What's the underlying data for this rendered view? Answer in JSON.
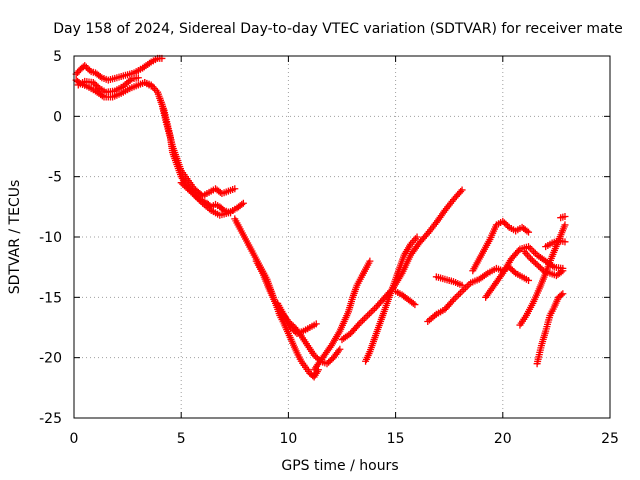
{
  "chart_data": {
    "type": "scatter",
    "title": "Day 158 of 2024, Sidereal Day-to-day VTEC variation (SDTVAR) for receiver mate",
    "xlabel": "GPS time / hours",
    "ylabel": "SDTVAR / TECUs",
    "xlim": [
      0,
      25
    ],
    "ylim": [
      -25,
      5
    ],
    "xticks": [
      "0",
      "5",
      "10",
      "15",
      "20",
      "25"
    ],
    "yticks": [
      "5",
      "0",
      "-5",
      "-10",
      "-15",
      "-20",
      "-25"
    ],
    "grid": true,
    "marker": "+",
    "color": "#ff0000",
    "series": [
      {
        "x": [
          0.1,
          0.3,
          0.5,
          0.8,
          1.0,
          1.3,
          1.6,
          2.0,
          2.4,
          2.8,
          3.2,
          3.6,
          3.9,
          4.1
        ],
        "y": [
          3.5,
          3.9,
          4.2,
          3.7,
          3.6,
          3.2,
          3.0,
          3.2,
          3.4,
          3.6,
          4.0,
          4.5,
          4.8,
          4.8
        ]
      },
      {
        "x": [
          0.1,
          0.3,
          0.6,
          1.0,
          1.4,
          1.8,
          2.2,
          2.6,
          3.0,
          3.3,
          3.6
        ],
        "y": [
          3.0,
          2.7,
          2.5,
          2.1,
          1.6,
          1.6,
          1.9,
          2.3,
          2.6,
          2.8,
          2.5
        ]
      },
      {
        "x": [
          0.2,
          0.5,
          0.9,
          1.2,
          1.5,
          1.9,
          2.3,
          2.7,
          3.0
        ],
        "y": [
          2.6,
          2.9,
          2.8,
          2.3,
          2.0,
          2.1,
          2.5,
          3.1,
          3.2
        ]
      },
      {
        "x": [
          3.3,
          3.6,
          3.9,
          4.1,
          4.3,
          4.5,
          4.6,
          4.8,
          5.0,
          5.2,
          5.4,
          5.6,
          5.8,
          6.0,
          6.2,
          6.4,
          6.6,
          6.8,
          7.0,
          7.3
        ],
        "y": [
          2.8,
          2.6,
          2.0,
          1.0,
          -0.5,
          -1.8,
          -3.0,
          -4.0,
          -5.0,
          -5.6,
          -6.0,
          -6.5,
          -6.8,
          -7.0,
          -7.2,
          -7.5,
          -7.3,
          -7.5,
          -7.8,
          -8.0
        ]
      },
      {
        "x": [
          4.0,
          4.2,
          4.4,
          4.6,
          4.8,
          5.0,
          5.2,
          5.4,
          5.6,
          5.8,
          6.0,
          6.3,
          6.6,
          6.9,
          7.2,
          7.5
        ],
        "y": [
          1.5,
          0.5,
          -1.0,
          -2.5,
          -3.5,
          -4.5,
          -5.0,
          -5.5,
          -6.0,
          -6.3,
          -6.6,
          -6.3,
          -6.0,
          -6.4,
          -6.2,
          -6.0
        ]
      },
      {
        "x": [
          5.0,
          5.3,
          5.6,
          6.0,
          6.4,
          6.8,
          7.2,
          7.6,
          7.9
        ],
        "y": [
          -5.5,
          -6.0,
          -6.5,
          -7.2,
          -7.8,
          -8.2,
          -8.0,
          -7.6,
          -7.2
        ]
      },
      {
        "x": [
          7.5,
          7.8,
          8.1,
          8.4,
          8.7,
          9.0,
          9.2,
          9.4,
          9.6,
          9.8,
          10.0,
          10.2,
          10.4,
          10.6,
          10.8,
          11.0,
          11.2,
          11.4
        ],
        "y": [
          -8.5,
          -9.5,
          -10.5,
          -11.5,
          -12.5,
          -13.5,
          -14.5,
          -15.5,
          -16.5,
          -17.2,
          -18.0,
          -18.8,
          -19.6,
          -20.3,
          -20.8,
          -21.3,
          -21.6,
          -21.0
        ]
      },
      {
        "x": [
          8.5,
          8.8,
          9.1,
          9.4,
          9.7,
          10.0,
          10.3,
          10.6,
          10.9,
          11.2,
          11.5,
          11.8,
          12.1,
          12.4
        ],
        "y": [
          -12.0,
          -13.0,
          -14.3,
          -15.5,
          -16.3,
          -17.0,
          -17.5,
          -18.2,
          -19.0,
          -19.8,
          -20.3,
          -20.5,
          -20.0,
          -19.3
        ]
      },
      {
        "x": [
          9.5,
          9.8,
          10.1,
          10.4,
          10.7,
          11.0,
          11.3
        ],
        "y": [
          -15.5,
          -16.5,
          -17.5,
          -18.0,
          -17.8,
          -17.5,
          -17.2
        ]
      },
      {
        "x": [
          11.2,
          11.6,
          12.0,
          12.4,
          12.8,
          13.0,
          13.2,
          13.5,
          13.8
        ],
        "y": [
          -21.0,
          -20.0,
          -19.0,
          -17.8,
          -16.2,
          -15.0,
          -14.0,
          -13.0,
          -12.0
        ]
      },
      {
        "x": [
          12.5,
          12.9,
          13.3,
          13.7,
          14.1,
          14.5,
          14.9,
          15.3,
          15.7,
          16.1,
          16.5,
          16.9,
          17.3,
          17.7,
          18.1
        ],
        "y": [
          -18.5,
          -18.0,
          -17.2,
          -16.5,
          -15.8,
          -15.0,
          -14.2,
          -13.0,
          -11.5,
          -10.5,
          -9.7,
          -8.8,
          -7.8,
          -6.9,
          -6.1
        ]
      },
      {
        "x": [
          13.6,
          13.8,
          14.0,
          14.2,
          14.4,
          14.6,
          14.8,
          15.0,
          15.2,
          15.4,
          15.7,
          16.0
        ],
        "y": [
          -20.3,
          -19.5,
          -18.5,
          -17.5,
          -16.5,
          -15.5,
          -14.5,
          -13.5,
          -12.5,
          -11.5,
          -10.6,
          -10.0
        ]
      },
      {
        "x": [
          15.0,
          15.3,
          15.6,
          15.9
        ],
        "y": [
          -14.5,
          -14.8,
          -15.2,
          -15.6
        ]
      },
      {
        "x": [
          16.5,
          16.9,
          17.3,
          17.7,
          18.1,
          18.5,
          18.9,
          19.3,
          19.7,
          20.0,
          20.3,
          20.6,
          20.9,
          21.2
        ],
        "y": [
          -17.0,
          -16.4,
          -16.0,
          -15.2,
          -14.5,
          -13.8,
          -13.5,
          -13.0,
          -12.6,
          -12.8,
          -12.5,
          -13.0,
          -13.3,
          -13.6
        ]
      },
      {
        "x": [
          18.6,
          19.0,
          19.4,
          19.7,
          20.0,
          20.3,
          20.6,
          20.9,
          21.2
        ],
        "y": [
          -12.8,
          -11.5,
          -10.2,
          -9.0,
          -8.7,
          -9.2,
          -9.5,
          -9.2,
          -9.6
        ]
      },
      {
        "x": [
          16.9,
          17.3,
          17.7,
          18.1
        ],
        "y": [
          -13.3,
          -13.5,
          -13.7,
          -14.0
        ]
      },
      {
        "x": [
          19.2,
          19.6,
          20.0,
          20.4,
          20.8,
          21.2,
          21.6,
          22.0,
          22.4,
          22.8
        ],
        "y": [
          -15.0,
          -14.0,
          -13.0,
          -11.8,
          -11.0,
          -10.8,
          -11.5,
          -12.0,
          -12.5,
          -12.6
        ]
      },
      {
        "x": [
          20.8,
          21.1,
          21.4,
          21.7,
          22.0,
          22.3,
          22.6,
          22.9
        ],
        "y": [
          -17.3,
          -16.5,
          -15.5,
          -14.3,
          -13.0,
          -11.6,
          -10.3,
          -9.0
        ]
      },
      {
        "x": [
          21.0,
          21.3,
          21.6,
          21.9,
          22.2,
          22.5,
          22.8
        ],
        "y": [
          -11.2,
          -11.8,
          -12.3,
          -12.8,
          -13.0,
          -13.2,
          -12.8
        ]
      },
      {
        "x": [
          21.6,
          21.8,
          22.0,
          22.2,
          22.4,
          22.6,
          22.8
        ],
        "y": [
          -20.5,
          -19.0,
          -17.8,
          -16.5,
          -15.8,
          -15.0,
          -14.7
        ]
      },
      {
        "x": [
          22.0,
          22.3,
          22.6,
          22.9
        ],
        "y": [
          -10.8,
          -10.5,
          -10.3,
          -10.4
        ]
      },
      {
        "x": [
          22.7,
          22.9
        ],
        "y": [
          -8.4,
          -8.3
        ]
      }
    ]
  }
}
